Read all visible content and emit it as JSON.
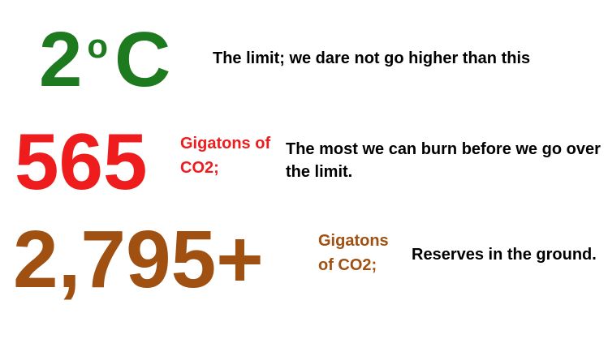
{
  "colors": {
    "green": "#1e7a1e",
    "red": "#ee1c1c",
    "brown": "#a05010"
  },
  "rows": [
    {
      "number": "2",
      "degree": "o",
      "unit_letter": "C",
      "unit": "",
      "description": "The limit; we dare not go higher than this"
    },
    {
      "number": "565",
      "unit": "Gigatons of CO2;",
      "description": "The most we can burn before we go over the limit."
    },
    {
      "number": "2,795+",
      "unit": "Gigatons of CO2;",
      "description": "Reserves in the ground."
    }
  ]
}
